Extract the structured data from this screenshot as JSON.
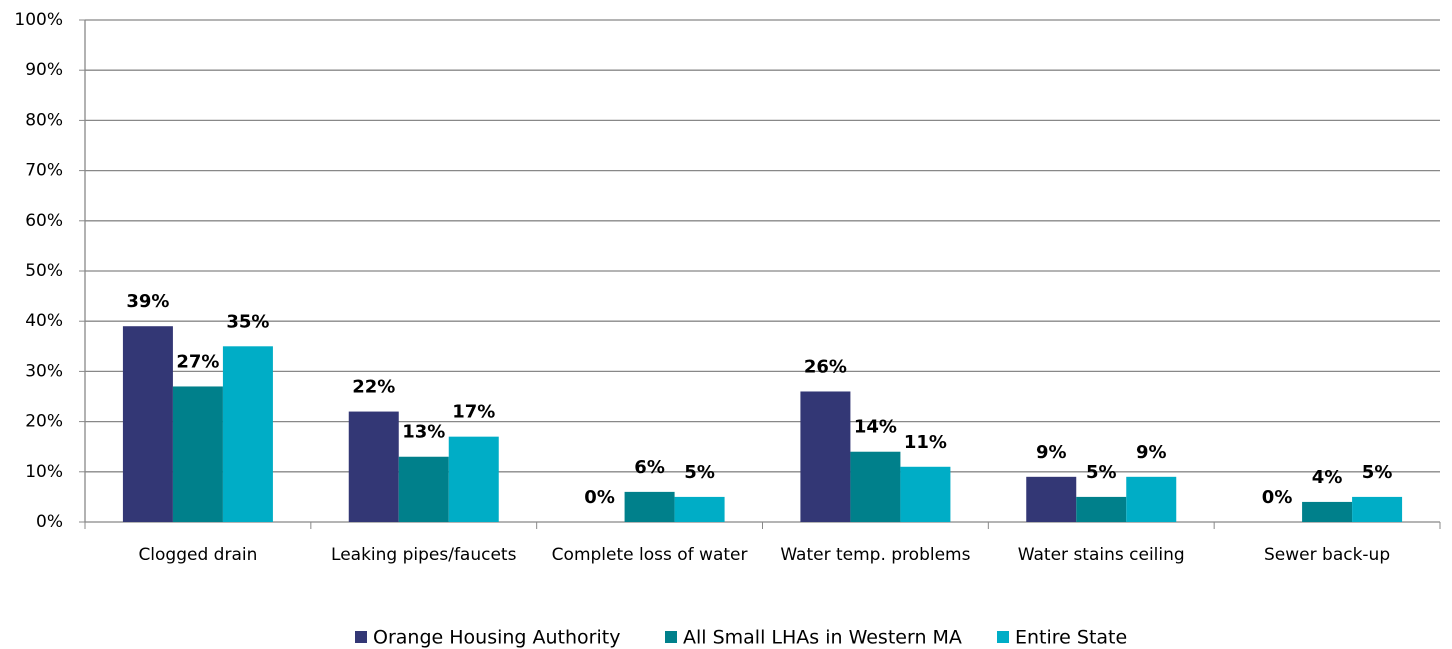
{
  "chart_data": {
    "type": "bar",
    "categories": [
      "Clogged drain",
      "Leaking pipes/faucets",
      "Complete loss of water",
      "Water temp. problems",
      "Water stains ceiling",
      "Sewer back-up"
    ],
    "series": [
      {
        "name": "Orange Housing Authority",
        "color": "#333775",
        "values": [
          39,
          22,
          0,
          26,
          9,
          0
        ],
        "value_labels": [
          "39%",
          "22%",
          "0%",
          "26%",
          "9%",
          "0%"
        ]
      },
      {
        "name": "All Small LHAs in Western MA",
        "color": "#00808b",
        "values": [
          27,
          13,
          6,
          14,
          5,
          4
        ],
        "value_labels": [
          "27%",
          "13%",
          "6%",
          "14%",
          "5%",
          "4%"
        ]
      },
      {
        "name": "Entire State",
        "color": "#00adc6",
        "values": [
          35,
          17,
          5,
          11,
          9,
          5
        ],
        "value_labels": [
          "35%",
          "17%",
          "5%",
          "11%",
          "9%",
          "5%"
        ]
      }
    ],
    "ylim": [
      0,
      100
    ],
    "yticks": [
      {
        "value": 0,
        "label": "0%"
      },
      {
        "value": 10,
        "label": "10%"
      },
      {
        "value": 20,
        "label": "20%"
      },
      {
        "value": 30,
        "label": "30%"
      },
      {
        "value": 40,
        "label": "40%"
      },
      {
        "value": 50,
        "label": "50%"
      },
      {
        "value": 60,
        "label": "60%"
      },
      {
        "value": 70,
        "label": "70%"
      },
      {
        "value": 80,
        "label": "80%"
      },
      {
        "value": 90,
        "label": "90%"
      },
      {
        "value": 100,
        "label": "100%"
      }
    ],
    "grid": true,
    "legend": "bottom"
  }
}
